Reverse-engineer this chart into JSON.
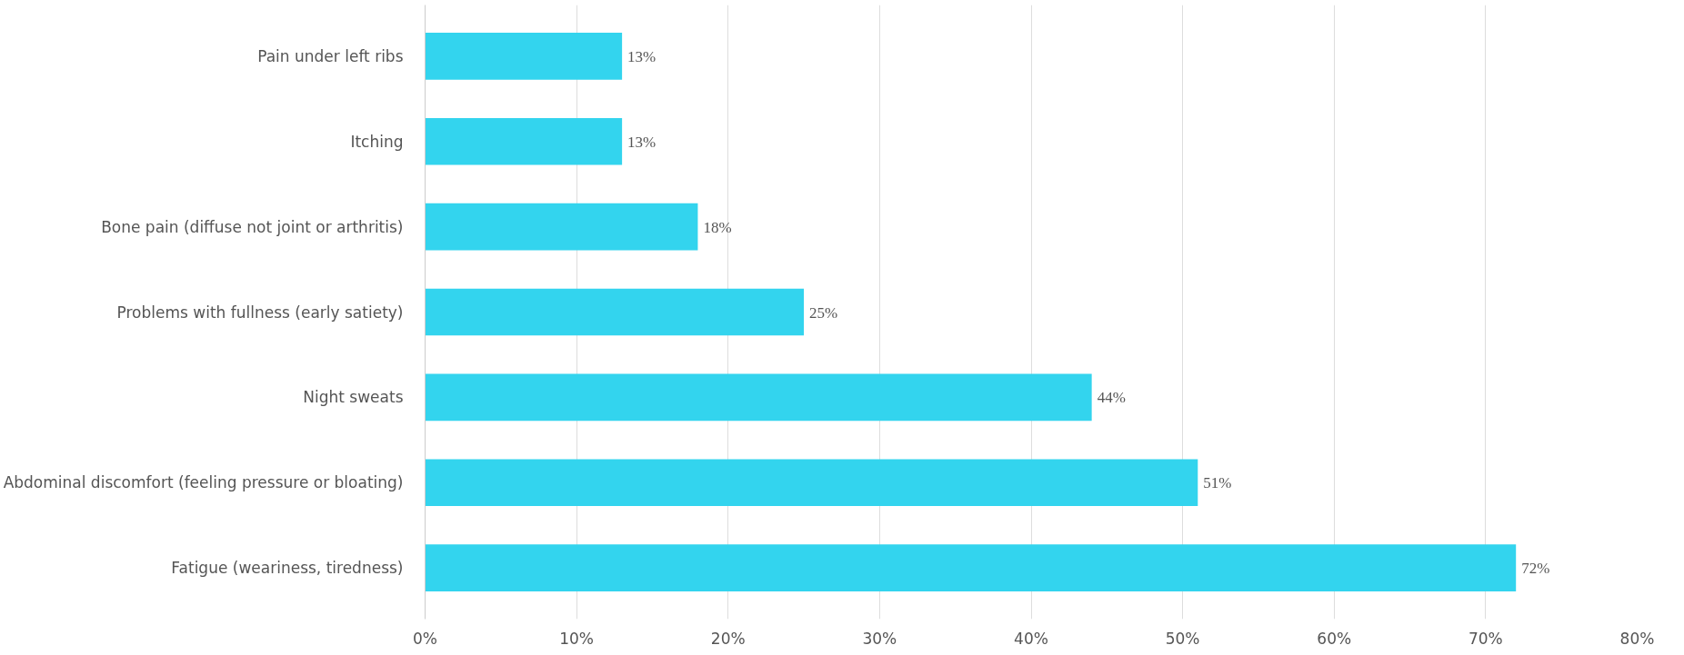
{
  "chart_data": {
    "type": "bar",
    "orientation": "horizontal",
    "categories": [
      "Pain under left ribs",
      "Itching",
      "Bone pain (diffuse not joint or arthritis)",
      "Problems with fullness (early satiety)",
      "Night sweats",
      "Abdominal discomfort (feeling pressure or bloating)",
      "Fatigue (weariness, tiredness)"
    ],
    "values": [
      13,
      13,
      18,
      25,
      44,
      51,
      72
    ],
    "value_labels": [
      "13%",
      "13%",
      "18%",
      "25%",
      "44%",
      "51%",
      "72%"
    ],
    "color": "#33d4ee",
    "xlim": [
      0,
      80
    ],
    "xticks": [
      {
        "value": 0,
        "label": "0%"
      },
      {
        "value": 10,
        "label": "10%"
      },
      {
        "value": 20,
        "label": "20%"
      },
      {
        "value": 30,
        "label": "30%"
      },
      {
        "value": 40,
        "label": "40%"
      },
      {
        "value": 50,
        "label": "50%"
      },
      {
        "value": 60,
        "label": "60%"
      },
      {
        "value": 70,
        "label": "70%"
      },
      {
        "value": 80,
        "label": "80%"
      }
    ],
    "grid": "x"
  }
}
